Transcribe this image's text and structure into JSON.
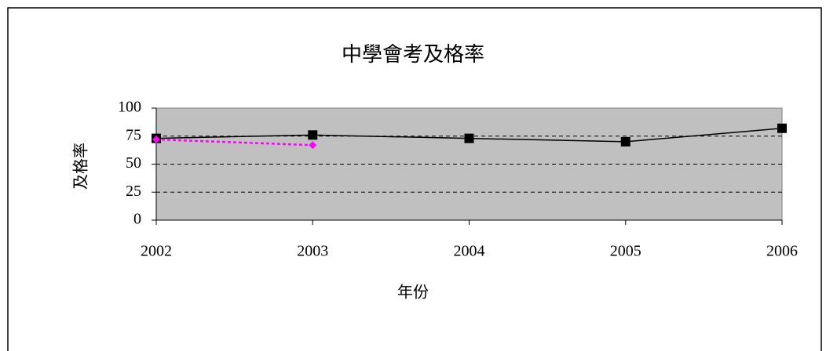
{
  "chart_data": {
    "type": "line",
    "title": "中學會考及格率",
    "x_label": "年份",
    "y_label": "及格率",
    "x": [
      2002,
      2003,
      2004,
      2005,
      2006
    ],
    "xlim": [
      2002,
      2006
    ],
    "xticks": [
      2002,
      2003,
      2004,
      2005,
      2006
    ],
    "ylim": [
      0,
      100
    ],
    "yticks": [
      0,
      25,
      50,
      75,
      100
    ],
    "grid": true,
    "series": [
      {
        "color": "#000000",
        "values": [
          73,
          76,
          73,
          70,
          82
        ],
        "marker": "square",
        "dashed": false
      },
      {
        "color": "#ff00ff",
        "values": [
          72,
          67,
          null,
          null,
          null
        ],
        "marker": "diamond",
        "dashed": true
      }
    ]
  }
}
